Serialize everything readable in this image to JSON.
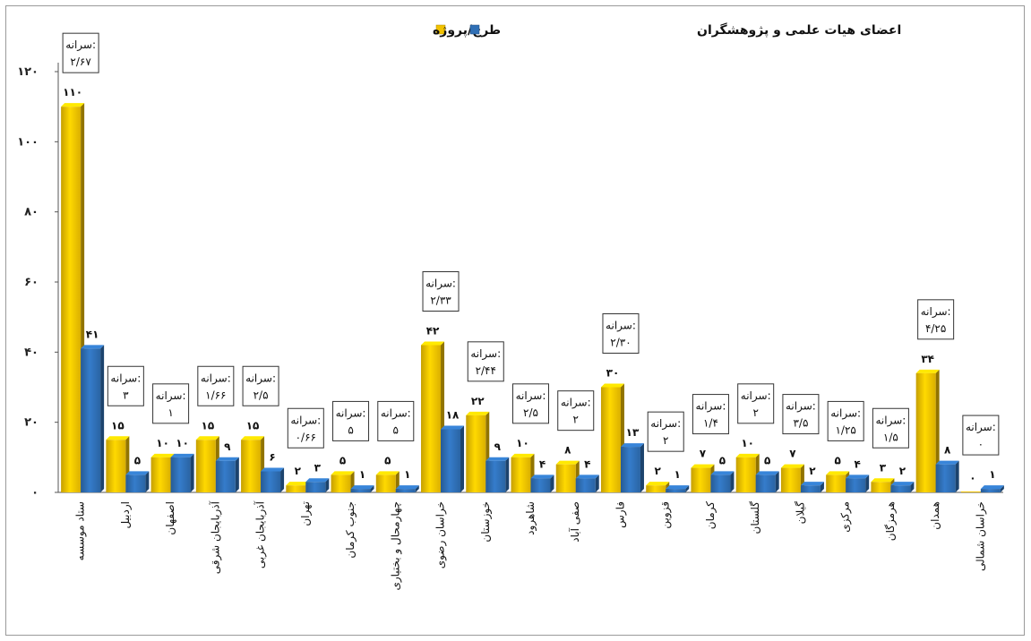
{
  "chart_data": {
    "type": "bar",
    "yticks": [
      "۰",
      "۲۰",
      "۴۰",
      "۶۰",
      "۸۰",
      "۱۰۰",
      "۱۲۰"
    ],
    "ylim": [
      0,
      120
    ],
    "grid": false,
    "legend_position": "top",
    "categories": [
      "ستاد موسسه",
      "اردبیل",
      "اصفهان",
      "آذربایجان شرقی",
      "آذربایجان غربی",
      "تهران",
      "جنوب کرمان",
      "چهارمحال و بختیاری",
      "خراسان رضوی",
      "خوزستان",
      "شاهرود",
      "صفی آباد",
      "فارس",
      "قزوین",
      "کرمان",
      "گلستان",
      "گیلان",
      "مرکزی",
      "هرمزگان",
      "همدان",
      "خراسان شمالی"
    ],
    "series": [
      {
        "name": "طرح/پروژه",
        "color": "#f2c200",
        "values": [
          110,
          15,
          10,
          15,
          15,
          2,
          5,
          5,
          42,
          22,
          10,
          8,
          30,
          2,
          7,
          10,
          7,
          5,
          3,
          34,
          0
        ],
        "labels": [
          "۱۱۰",
          "۱۵",
          "۱۰",
          "۱۵",
          "۱۵",
          "۲",
          "۵",
          "۵",
          "۴۲",
          "۲۲",
          "۱۰",
          "۸",
          "۳۰",
          "۲",
          "۷",
          "۱۰",
          "۷",
          "۵",
          "۳",
          "۳۴",
          "۰"
        ]
      },
      {
        "name": "اعضای هیات علمی و پژوهشگران",
        "color": "#2f6fb5",
        "values": [
          41,
          5,
          10,
          9,
          6,
          3,
          1,
          1,
          18,
          9,
          4,
          4,
          13,
          1,
          5,
          5,
          2,
          4,
          2,
          8,
          1
        ],
        "labels": [
          "۴۱",
          "۵",
          "۱۰",
          "۹",
          "۶",
          "۳",
          "۱",
          "۱",
          "۱۸",
          "۹",
          "۴",
          "۴",
          "۱۳",
          "۱",
          "۵",
          "۵",
          "۲",
          "۴",
          "۲",
          "۸",
          "۱"
        ]
      }
    ],
    "annotations": [
      {
        "label": "سرانه:",
        "value": "۲/۶۷"
      },
      {
        "label": "سرانه:",
        "value": "۳"
      },
      {
        "label": "سرانه:",
        "value": "۱"
      },
      {
        "label": "سرانه:",
        "value": "۱/۶۶"
      },
      {
        "label": "سرانه:",
        "value": "۲/۵"
      },
      {
        "label": "سرانه:",
        "value": "۰/۶۶"
      },
      {
        "label": "سرانه:",
        "value": "۵"
      },
      {
        "label": "سرانه:",
        "value": "۵"
      },
      {
        "label": "سرانه:",
        "value": "۲/۳۳"
      },
      {
        "label": "سرانه:",
        "value": "۲/۴۴"
      },
      {
        "label": "سرانه:",
        "value": "۲/۵"
      },
      {
        "label": "سرانه:",
        "value": "۲"
      },
      {
        "label": "سرانه:",
        "value": "۲/۳۰"
      },
      {
        "label": "سرانه:",
        "value": "۲"
      },
      {
        "label": "سرانه:",
        "value": "۱/۴"
      },
      {
        "label": "سرانه:",
        "value": "۲"
      },
      {
        "label": "سرانه:",
        "value": "۳/۵"
      },
      {
        "label": "سرانه:",
        "value": "۱/۲۵"
      },
      {
        "label": "سرانه:",
        "value": "۱/۵"
      },
      {
        "label": "سرانه:",
        "value": "۴/۲۵"
      },
      {
        "label": "سرانه:",
        "value": "۰"
      }
    ]
  }
}
